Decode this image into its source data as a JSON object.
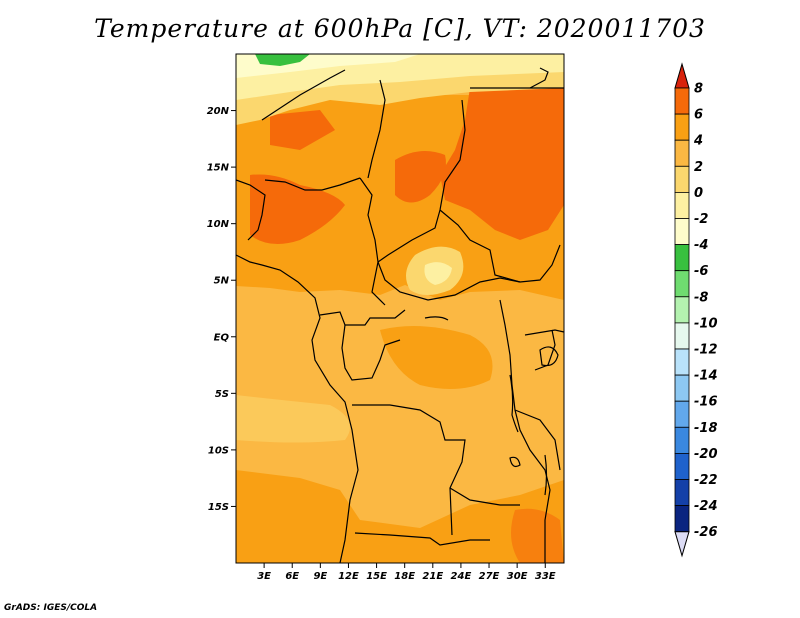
{
  "title": "Temperature at 600hPa [C], VT: 2020011703",
  "credit": "GrADS: IGES/COLA",
  "map": {
    "lat_labels": [
      "20N",
      "15N",
      "10N",
      "5N",
      "EQ",
      "5S",
      "10S",
      "15S"
    ],
    "lat_values": [
      20,
      15,
      10,
      5,
      0,
      -5,
      -10,
      -15
    ],
    "lon_labels": [
      "3E",
      "6E",
      "9E",
      "12E",
      "15E",
      "18E",
      "21E",
      "24E",
      "27E",
      "30E",
      "33E"
    ],
    "lon_values": [
      3,
      6,
      9,
      12,
      15,
      18,
      21,
      24,
      27,
      30,
      33
    ],
    "lon_range": [
      0,
      35
    ],
    "lat_range": [
      -20,
      25
    ]
  },
  "colorbar": {
    "labels": [
      "8",
      "6",
      "4",
      "2",
      "0",
      "-2",
      "-4",
      "-6",
      "-8",
      "-10",
      "-12",
      "-14",
      "-16",
      "-18",
      "-20",
      "-22",
      "-24",
      "-26"
    ],
    "colors": [
      "#f0280a",
      "#f56a0a",
      "#f9a014",
      "#fbb843",
      "#fbd76e",
      "#fdf0a2",
      "#fefccb",
      "#38c03f",
      "#6fdc70",
      "#b4f2b0",
      "#e6f8ee",
      "#b9e2fa",
      "#8dc8f2",
      "#62a8ec",
      "#3a88e0",
      "#1f62cc",
      "#1440a8",
      "#0a2480",
      "#060f55"
    ],
    "top_color": "#d8220c",
    "bottom_color": "#dcdcf5"
  },
  "colors": {
    "warm_6": "#f56a0a",
    "warm_4": "#f9a014",
    "warm_2": "#fbb843",
    "warm_0": "#fbd76e",
    "cool_m2": "#fdf0a2",
    "cool_m4": "#fefccb",
    "green": "#38c03f"
  }
}
